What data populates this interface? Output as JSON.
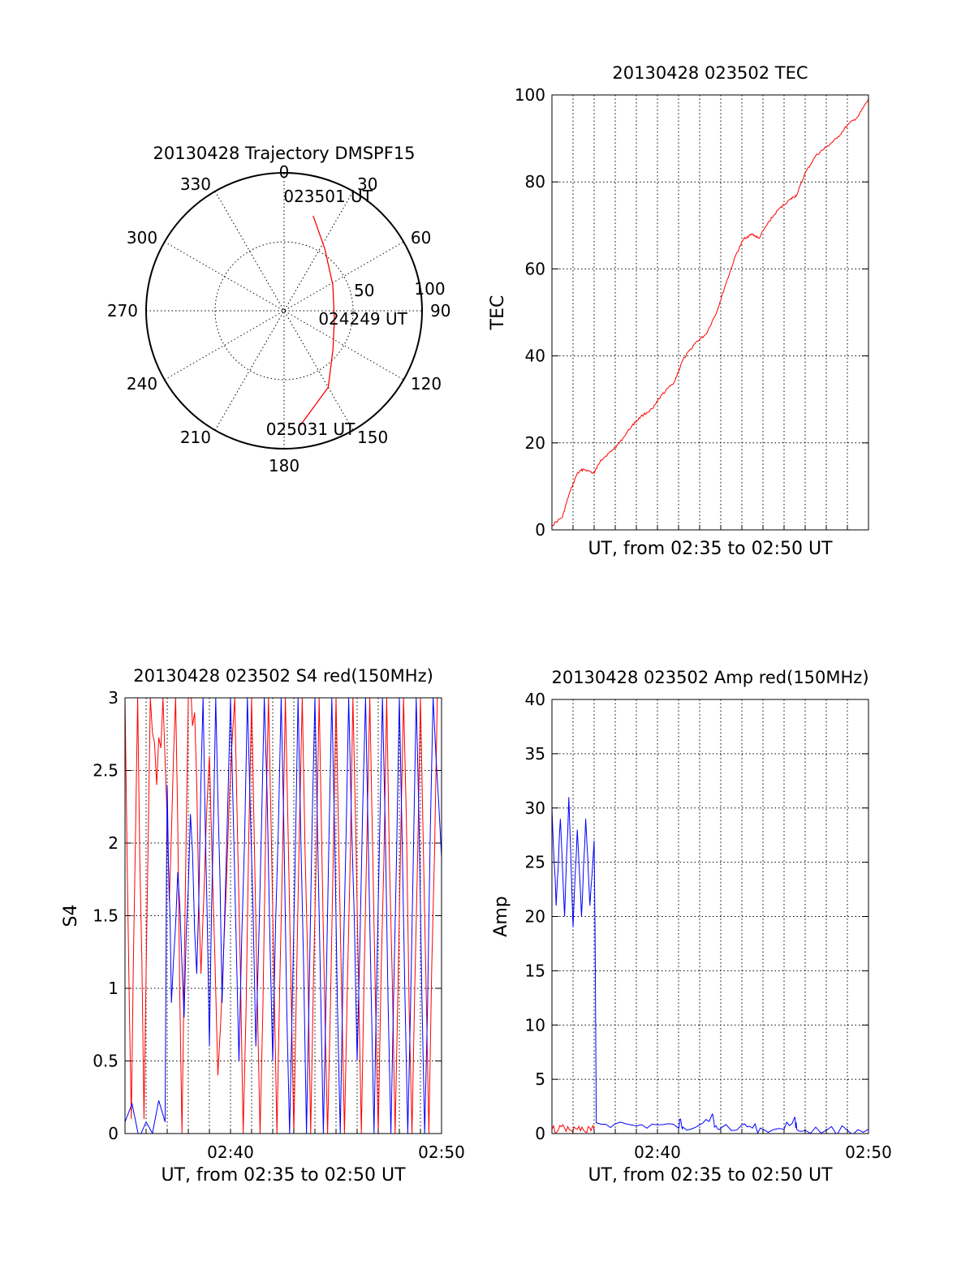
{
  "chart_data": [
    {
      "type": "polar",
      "title": "20130428 Trajectory DMSPF15",
      "angle_labels": [
        "0",
        "30",
        "60",
        "90",
        "120",
        "150",
        "180",
        "210",
        "240",
        "270",
        "300",
        "330"
      ],
      "radial_labels": [
        "50",
        "100"
      ],
      "rmax": 100,
      "trajectory": {
        "color": "#ff0000",
        "points": [
          {
            "az": 17,
            "r": 72
          },
          {
            "az": 33,
            "r": 54
          },
          {
            "az": 62,
            "r": 40
          },
          {
            "az": 100,
            "r": 37
          },
          {
            "az": 128,
            "r": 45
          },
          {
            "az": 150,
            "r": 64
          },
          {
            "az": 172,
            "r": 84
          }
        ],
        "labels": [
          {
            "text": "023501 UT",
            "az": 22,
            "r": 85
          },
          {
            "text": "024249 UT",
            "az": 100,
            "r": 58
          },
          {
            "text": "025031 UT",
            "az": 168,
            "r": 92
          }
        ]
      }
    },
    {
      "type": "line",
      "title": "20130428 023502 TEC",
      "ylabel": "TEC",
      "xlabel": "UT, from 02:35 to 02:50 UT",
      "xlim": [
        0,
        15
      ],
      "ylim": [
        0,
        100
      ],
      "yticks": [
        "0",
        "20",
        "40",
        "60",
        "80",
        "100"
      ],
      "grid": true,
      "series": [
        {
          "color": "#ff0000",
          "x": [
            0,
            0.5,
            0.8,
            1.2,
            1.5,
            2.0,
            2.3,
            2.8,
            3.2,
            3.8,
            4.2,
            4.8,
            5.2,
            5.8,
            6.2,
            6.8,
            7.3,
            7.8,
            8.2,
            8.7,
            9.1,
            9.5,
            9.8,
            10.3,
            10.8,
            11.3,
            11.6,
            12.0,
            12.5,
            13.0,
            13.5,
            14.0,
            14.5,
            15.0
          ],
          "y": [
            1,
            3,
            8,
            13,
            14,
            13,
            16,
            18,
            20,
            24,
            26,
            28,
            31,
            34,
            39,
            43,
            45,
            50,
            56,
            63,
            67,
            68,
            67,
            71,
            74,
            76,
            77,
            82,
            86,
            88,
            90,
            93,
            95,
            99
          ]
        }
      ]
    },
    {
      "type": "line",
      "title": "20130428 023502 S4 red(150MHz)",
      "ylabel": "S4",
      "xlabel": "UT, from 02:35 to 02:50 UT",
      "xlim": [
        0,
        15
      ],
      "ylim": [
        0,
        3
      ],
      "yticks": [
        "0",
        "0.5",
        "1",
        "1.5",
        "2",
        "2.5",
        "3"
      ],
      "xticks": [
        {
          "value": 5,
          "label": "02:40"
        },
        {
          "value": 15,
          "label": "02:50"
        }
      ],
      "grid": true,
      "series": [
        {
          "color": "#ff0000",
          "x": [
            0,
            0.3,
            0.6,
            0.9,
            1.2,
            1.5,
            1.8,
            2.1,
            2.4,
            2.7,
            3.0,
            3.3,
            3.6,
            4.0,
            4.4,
            4.8,
            5.2,
            5.6,
            6.0,
            6.4,
            6.8,
            7.2,
            7.6,
            8.0,
            8.4,
            8.8,
            9.2,
            9.6,
            10.0,
            10.4,
            10.8,
            11.2,
            11.6,
            12.0,
            12.4,
            12.8,
            13.2,
            13.6,
            14.0,
            14.4,
            14.8
          ],
          "y": [
            3,
            0.1,
            3,
            0.1,
            3,
            2.4,
            3,
            1.6,
            3,
            0,
            3,
            2.9,
            1.1,
            2.6,
            0.4,
            1.7,
            3,
            0,
            3,
            0,
            3,
            0,
            3,
            0,
            3,
            0,
            3,
            0,
            3,
            0,
            3,
            0,
            3,
            0,
            3,
            0,
            3,
            0,
            3,
            0,
            3
          ]
        },
        {
          "color": "#0000ff",
          "x": [
            0,
            1.0,
            1.9,
            2.0,
            2.2,
            2.5,
            2.8,
            3.1,
            3.4,
            3.7,
            4.0,
            4.3,
            4.6,
            5.0,
            5.4,
            5.8,
            6.2,
            6.6,
            7.0,
            7.4,
            7.8,
            8.2,
            8.6,
            9.0,
            9.4,
            9.8,
            10.2,
            10.6,
            11.0,
            11.4,
            11.8,
            12.2,
            12.6,
            13.0,
            13.4,
            13.8,
            14.2,
            14.6,
            15.0
          ],
          "y": [
            0.08,
            0.08,
            0.08,
            2.4,
            0.9,
            1.8,
            0.8,
            2.2,
            1.1,
            3,
            0.6,
            3,
            0.9,
            3,
            0.5,
            3,
            0.6,
            3,
            0.5,
            3,
            0,
            3,
            0,
            3,
            0,
            3,
            0,
            3,
            0.5,
            3,
            0,
            3,
            0,
            3,
            0,
            3,
            0,
            3,
            1.9
          ]
        }
      ]
    },
    {
      "type": "line",
      "title": "20130428 023502 Amp red(150MHz)",
      "ylabel": "Amp",
      "xlabel": "UT, from 02:35 to 02:50 UT",
      "xlim": [
        0,
        15
      ],
      "ylim": [
        0,
        40
      ],
      "yticks": [
        "0",
        "5",
        "10",
        "15",
        "20",
        "25",
        "30",
        "35",
        "40"
      ],
      "xticks": [
        {
          "value": 5,
          "label": "02:40"
        },
        {
          "value": 15,
          "label": "02:50"
        }
      ],
      "grid": true,
      "series": [
        {
          "color": "#0000ff",
          "x": [
            0,
            0.2,
            0.4,
            0.6,
            0.8,
            1.0,
            1.2,
            1.4,
            1.6,
            1.8,
            2.0,
            2.05,
            2.1,
            3.0,
            4.0,
            5.0,
            6.0,
            6.1,
            6.2,
            7.0,
            7.6,
            7.7,
            8.0,
            9.0,
            9.5,
            10.0,
            11.0,
            11.5,
            11.6,
            12.0,
            13.0,
            14.0,
            15.0
          ],
          "y": [
            30,
            21,
            29,
            20,
            31,
            19,
            28,
            20,
            29,
            21,
            27,
            17,
            1,
            0.9,
            0.7,
            0.8,
            0.5,
            1.3,
            0.6,
            0.8,
            1.8,
            0.6,
            0.5,
            0.8,
            0.5,
            0.4,
            0.4,
            1.5,
            0.4,
            0.3,
            0.3,
            0.3,
            0.4
          ]
        },
        {
          "color": "#ff0000",
          "x": [
            0,
            0.3,
            0.6,
            0.9,
            1.2,
            1.5,
            1.8,
            2.0
          ],
          "y": [
            0.4,
            0.3,
            0.5,
            0.3,
            0.4,
            0.3,
            0.5,
            0.3
          ]
        }
      ]
    }
  ]
}
